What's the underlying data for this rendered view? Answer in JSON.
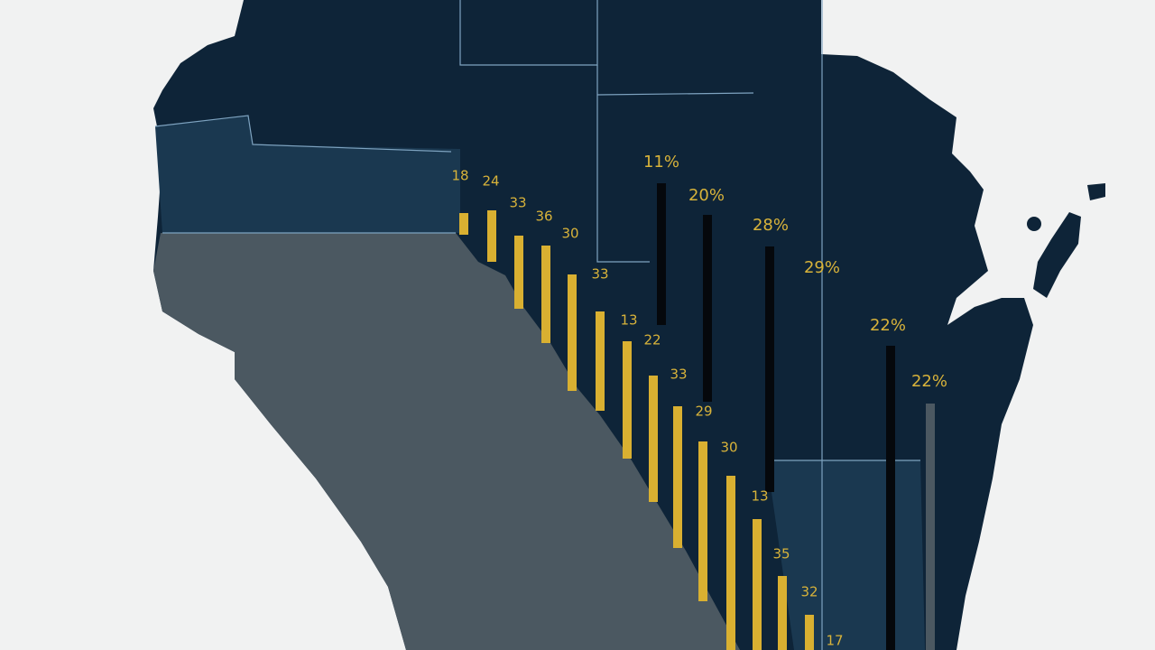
{
  "labels": [
    "18",
    "24",
    "33",
    "36",
    "30",
    "33",
    "13",
    "22",
    "33",
    "29",
    "30",
    "13",
    "35",
    "32",
    "17"
  ],
  "percent_labels": [
    "11%",
    "20%",
    "28%",
    "29%",
    "22%",
    "22%"
  ]
}
